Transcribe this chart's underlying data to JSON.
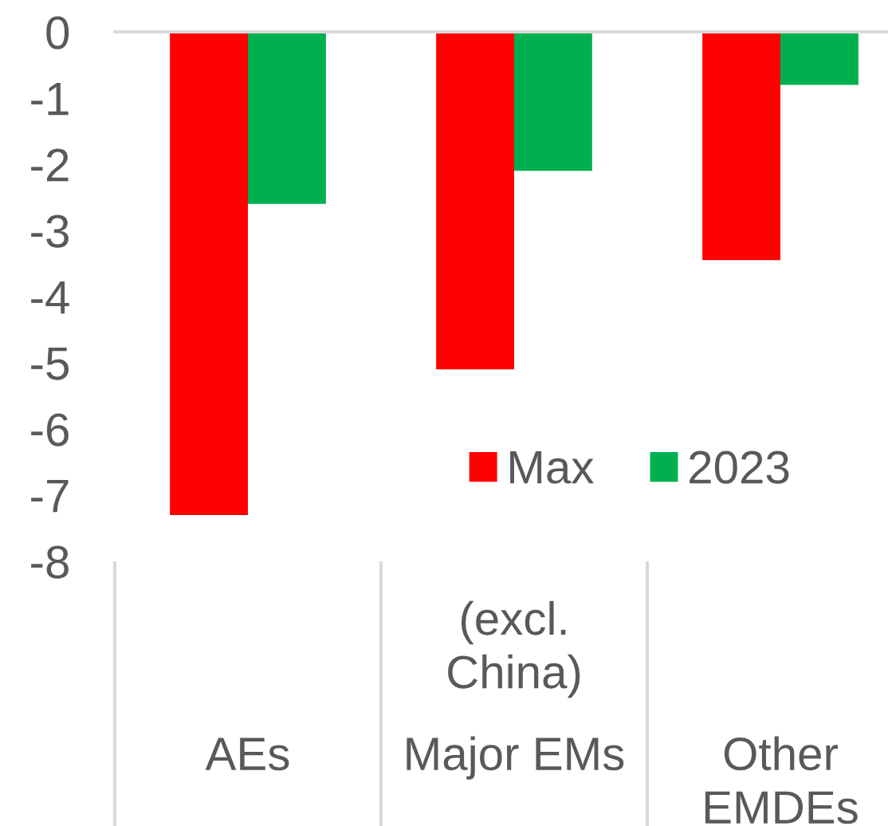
{
  "chart_data": {
    "type": "bar",
    "categories": [
      "AEs",
      "Major EMs",
      "Other\nEMDEs"
    ],
    "series": [
      {
        "name": "Max",
        "color": "#ff0000",
        "values": [
          -7.3,
          -5.1,
          -3.45
        ]
      },
      {
        "name": "2023",
        "color": "#00b050",
        "values": [
          -2.6,
          -2.1,
          -0.8
        ]
      }
    ],
    "ylim": [
      -8,
      0
    ],
    "yticks": [
      0,
      -1,
      -2,
      -3,
      -4,
      -5,
      -6,
      -7,
      -8
    ],
    "legend": "bottom right",
    "annotations": [
      "(excl.\nChina)"
    ]
  }
}
